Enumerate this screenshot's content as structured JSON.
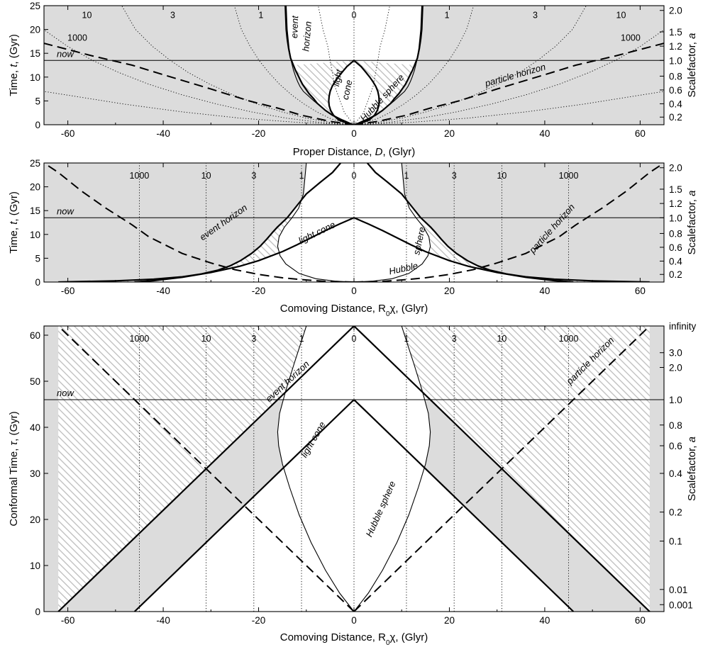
{
  "chart_data": [
    {
      "type": "line",
      "panel": "proper-distance",
      "xlabel": "Proper Distance, D, (Glyr)",
      "ylabel": "Time, t, (Gyr)",
      "y2label": "Scalefactor, a",
      "xlim": [
        -65,
        65
      ],
      "ylim": [
        0,
        25
      ],
      "xticks": [
        -60,
        -40,
        -20,
        0,
        20,
        40,
        60
      ],
      "yticks": [
        0,
        5,
        10,
        15,
        20,
        25
      ],
      "y2ticks": [
        {
          "label": "0.2",
          "t": 1.6
        },
        {
          "label": "0.4",
          "t": 4.4
        },
        {
          "label": "0.6",
          "t": 7.3
        },
        {
          "label": "0.8",
          "t": 10.2
        },
        {
          "label": "1.0",
          "t": 13.5
        },
        {
          "label": "1.2",
          "t": 16.5
        },
        {
          "label": "1.5",
          "t": 19.5
        },
        {
          "label": "2.0",
          "t": 24.0
        }
      ],
      "now": 13.5,
      "now_label": "now",
      "worldline_labels": [
        {
          "text": "10",
          "x": -56,
          "y": 23
        },
        {
          "text": "3",
          "x": -38,
          "y": 23
        },
        {
          "text": "1",
          "x": -19.5,
          "y": 23
        },
        {
          "text": "0",
          "x": 0,
          "y": 23
        },
        {
          "text": "1",
          "x": 19.5,
          "y": 23
        },
        {
          "text": "3",
          "x": 38,
          "y": 23
        },
        {
          "text": "10",
          "x": 56,
          "y": 23
        },
        {
          "text": "1000",
          "x": -58,
          "y": 18.2
        },
        {
          "text": "1000",
          "x": 58,
          "y": 18.2
        }
      ],
      "annotations": [
        {
          "text": "event",
          "x": -11.8,
          "y": 20.5,
          "rotate": -88
        },
        {
          "text": "horizon",
          "x": -9.2,
          "y": 18.5,
          "rotate": -85
        },
        {
          "text": "light",
          "x": -2.8,
          "y": 9.7,
          "rotate": -78
        },
        {
          "text": "cone",
          "x": -0.8,
          "y": 7.2,
          "rotate": -78
        },
        {
          "text": "Hubble sphere",
          "x": 6.4,
          "y": 5.2,
          "rotate": -48
        },
        {
          "text": "particle horizon",
          "x": 34,
          "y": 9.8,
          "rotate": -16
        }
      ],
      "series": [
        {
          "kind": "event-horizon",
          "x": [
            0.0,
            0.9,
            1.8,
            2.5,
            4.5,
            6.0,
            7.7,
            8.5,
            9.4,
            10.1,
            10.8,
            11.3,
            11.8,
            12.3,
            12.7,
            13.3,
            13.7,
            14.0,
            14.2,
            14.4
          ],
          "t": [
            0.0,
            0.3,
            0.7,
            1.0,
            2.0,
            3.0,
            4.5,
            5.5,
            6.5,
            7.5,
            8.5,
            9.5,
            10.5,
            11.5,
            12.5,
            14.0,
            16.0,
            18.0,
            20.0,
            25.0
          ]
        },
        {
          "kind": "hubble-sphere",
          "x": [
            0.0,
            1.5,
            3.0,
            4.5,
            5.9,
            7.2,
            8.4,
            9.5,
            10.6,
            11.3,
            11.8,
            12.2,
            12.7,
            13.2,
            13.6,
            14.0,
            14.2
          ],
          "t": [
            0.0,
            0.5,
            1.0,
            2.0,
            3.0,
            4.0,
            5.0,
            6.0,
            7.0,
            8.0,
            9.0,
            10.0,
            11.5,
            13.5,
            16.0,
            20.0,
            25.0
          ]
        },
        {
          "kind": "light-cone",
          "x": [
            0.0,
            1.6,
            3.2,
            4.3,
            4.9,
            5.2,
            5.3,
            5.2,
            5.0,
            4.6,
            4.0,
            3.3,
            2.5,
            1.5,
            0.0
          ],
          "t": [
            0.0,
            0.4,
            1.0,
            2.0,
            3.0,
            4.0,
            5.0,
            6.0,
            7.0,
            8.0,
            9.0,
            10.0,
            11.0,
            12.2,
            13.5
          ]
        },
        {
          "kind": "particle-horizon",
          "x": [
            0.0,
            5.0,
            11.0,
            16.0,
            22.0,
            30.0,
            40.0,
            46.5,
            55.0,
            65.0
          ],
          "t": [
            0.0,
            0.7,
            2.0,
            3.5,
            5.0,
            7.5,
            10.5,
            12.5,
            14.5,
            17.1
          ]
        },
        {
          "kind": "worldline",
          "z": 1,
          "x": [
            0,
            2.6,
            5.2,
            7.8,
            10.4,
            13.0,
            15.6,
            17.9,
            19.9,
            21.8,
            23.6,
            25.1
          ],
          "t": [
            0,
            0.5,
            1.4,
            2.7,
            4.3,
            6.2,
            8.5,
            11.0,
            13.5,
            16.5,
            20.0,
            25.0
          ]
        },
        {
          "kind": "worldline",
          "z": 3,
          "x": [
            0,
            5.0,
            10.1,
            15.1,
            20.2,
            25.2,
            30.2,
            34.8,
            38.5,
            42.3,
            45.8,
            48.7
          ],
          "t": [
            0,
            0.5,
            1.4,
            2.7,
            4.3,
            6.2,
            8.5,
            11.0,
            13.5,
            16.5,
            20.0,
            25.0
          ]
        },
        {
          "kind": "worldline",
          "z": 10,
          "x": [
            0,
            7.2,
            14.3,
            21.5,
            28.6,
            35.8,
            43.0,
            49.4,
            54.8,
            60.1,
            65.1
          ],
          "t": [
            0,
            0.5,
            1.4,
            2.7,
            4.3,
            6.2,
            8.5,
            11.0,
            13.5,
            16.5,
            20.0
          ]
        },
        {
          "kind": "worldline",
          "z": 1000,
          "x": [
            0,
            12.0,
            24.0,
            36.0,
            48.0,
            60.0,
            65.0
          ],
          "t": [
            0,
            0.5,
            1.4,
            2.7,
            4.3,
            6.2,
            7.0
          ]
        },
        {
          "kind": "worldline",
          "z": 0.3,
          "x": [
            0,
            2.0,
            4.0,
            5.0,
            5.5,
            6.5,
            7.5
          ],
          "t": [
            0,
            2.5,
            8.0,
            13.5,
            16.5,
            20.0,
            25.0
          ]
        }
      ]
    },
    {
      "type": "line",
      "panel": "comoving-distance",
      "xlabel": "Comoving Distance, R0χ, (Glyr)",
      "ylabel": "Time, t, (Gyr)",
      "y2label": "Scalefactor, a",
      "xlim": [
        -65,
        65
      ],
      "ylim": [
        0,
        25
      ],
      "xticks": [
        -60,
        -40,
        -20,
        0,
        20,
        40,
        60
      ],
      "yticks": [
        0,
        5,
        10,
        15,
        20,
        25
      ],
      "y2ticks": [
        {
          "label": "0.2",
          "t": 1.6
        },
        {
          "label": "0.4",
          "t": 4.4
        },
        {
          "label": "0.6",
          "t": 7.3
        },
        {
          "label": "0.8",
          "t": 10.2
        },
        {
          "label": "1.0",
          "t": 13.5
        },
        {
          "label": "1.2",
          "t": 16.5
        },
        {
          "label": "1.5",
          "t": 19.5
        },
        {
          "label": "2.0",
          "t": 24.0
        }
      ],
      "now": 13.5,
      "now_label": "now",
      "worldlines_x": [
        0,
        11,
        21,
        31,
        45
      ],
      "worldline_labels": [
        "0",
        "1",
        "3",
        "10",
        "1000"
      ],
      "annotations": [
        {
          "text": "event horizon",
          "x": -27,
          "y": 12.0,
          "rotate": -35
        },
        {
          "text": "light cone",
          "x": -7.5,
          "y": 9.8,
          "rotate": -26
        },
        {
          "text": "Hubble",
          "x": 10.5,
          "y": 2.2,
          "rotate": -12
        },
        {
          "text": "sphere",
          "x": 14.3,
          "y": 8.5,
          "rotate": -78
        },
        {
          "text": "particle horizon",
          "x": 42,
          "y": 10.8,
          "rotate": -48
        }
      ],
      "series": [
        {
          "kind": "event-horizon",
          "x": [
            62.0,
            50.0,
            42.0,
            36.0,
            32.0,
            28.5,
            26.0,
            23.8,
            21.5,
            19.7,
            18.3,
            17.0,
            16.1,
            14.0,
            12.0,
            10.0,
            7.0,
            4.5,
            2.8
          ],
          "t": [
            0.0,
            0.25,
            0.6,
            1.1,
            1.7,
            2.5,
            3.4,
            4.5,
            6.0,
            7.5,
            9.0,
            10.5,
            11.5,
            13.5,
            16.0,
            18.5,
            21.0,
            23.0,
            25.0
          ]
        },
        {
          "kind": "light-cone",
          "x": [
            0.0,
            3.0,
            6.0,
            9.0,
            12.0,
            15.0,
            20.0,
            24.0,
            30.0,
            36.0,
            42.0,
            46.0
          ],
          "t": [
            13.5,
            12.2,
            10.8,
            9.3,
            7.8,
            6.4,
            4.5,
            3.3,
            2.0,
            1.0,
            0.3,
            0.0
          ]
        },
        {
          "kind": "particle-horizon",
          "x": [
            0.0,
            6.0,
            11.0,
            15.0,
            20.0,
            25.0,
            30.0,
            36.0,
            43.0,
            46.5,
            52.0,
            57.0,
            62.0,
            65.0
          ],
          "t": [
            0.0,
            0.15,
            0.5,
            0.9,
            1.6,
            2.6,
            4.0,
            6.0,
            9.5,
            12.0,
            15.5,
            19.0,
            23.0,
            25.0
          ]
        },
        {
          "kind": "hubble-sphere",
          "x": [
            0.0,
            4.0,
            8.0,
            11.5,
            14.3,
            15.5,
            16.0,
            15.7,
            14.6,
            13.0,
            11.6,
            10.6,
            10.0
          ],
          "t": [
            0.0,
            0.2,
            0.7,
            1.8,
            3.8,
            5.5,
            7.5,
            9.5,
            11.5,
            13.5,
            15.5,
            18.5,
            25.0
          ]
        }
      ]
    },
    {
      "type": "line",
      "panel": "conformal-time",
      "xlabel": "Comoving Distance, R0χ, (Glyr)",
      "ylabel": "Conformal Time, τ, (Gyr)",
      "y2label": "Scalefactor, a",
      "xlim": [
        -65,
        65
      ],
      "ylim": [
        0,
        62
      ],
      "xticks": [
        -60,
        -40,
        -20,
        0,
        20,
        40,
        60
      ],
      "yticks": [
        0,
        10,
        20,
        30,
        40,
        50,
        60
      ],
      "y2ticks": [
        {
          "label": "0.001",
          "tau": 1.5
        },
        {
          "label": "0.01",
          "tau": 4.8
        },
        {
          "label": "0.1",
          "tau": 15.3
        },
        {
          "label": "0.2",
          "tau": 21.6
        },
        {
          "label": "0.4",
          "tau": 30.0
        },
        {
          "label": "0.6",
          "tau": 36.0
        },
        {
          "label": "0.8",
          "tau": 40.5
        },
        {
          "label": "1.0",
          "tau": 46.0
        },
        {
          "label": "2.0",
          "tau": 53.0
        },
        {
          "label": "3.0",
          "tau": 56.2
        },
        {
          "label": "infinity",
          "tau": 62.0
        }
      ],
      "now": 46.0,
      "now_label": "now",
      "worldlines_x": [
        0,
        11,
        21,
        31,
        45
      ],
      "worldline_labels": [
        "0",
        "1",
        "3",
        "10",
        "1000"
      ],
      "annotations": [
        {
          "text": "event horizon",
          "x": -13.5,
          "y": 49.5,
          "rotate": -43
        },
        {
          "text": "light cone",
          "x": -8,
          "y": 37,
          "rotate": -60
        },
        {
          "text": "Hubble sphere",
          "x": 6.2,
          "y": 22,
          "rotate": -66
        },
        {
          "text": "particle horizon",
          "x": 50,
          "y": 54,
          "rotate": -45
        }
      ],
      "series": [
        {
          "kind": "event-horizon",
          "x": [
            0,
            62
          ],
          "tau": [
            62,
            0
          ]
        },
        {
          "kind": "light-cone",
          "x": [
            0,
            46
          ],
          "tau": [
            46,
            0
          ]
        },
        {
          "kind": "particle-horizon",
          "x": [
            0,
            62
          ],
          "tau": [
            0,
            62
          ]
        },
        {
          "kind": "hubble-sphere",
          "x": [
            0.0,
            3.0,
            6.0,
            9.0,
            11.5,
            13.5,
            15.0,
            15.8,
            16.0,
            15.6,
            14.3,
            12.5,
            10.6,
            10.0
          ],
          "tau": [
            0.0,
            4.0,
            9.0,
            15.0,
            21.0,
            27.0,
            32.0,
            36.0,
            39.0,
            43.0,
            48.0,
            54.0,
            60.0,
            62.0
          ]
        }
      ]
    }
  ]
}
